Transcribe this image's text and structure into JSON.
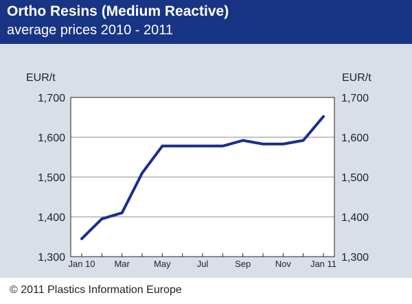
{
  "header": {
    "title": "Ortho Resins (Medium Reactive)",
    "subtitle": "average prices 2010 - 2011"
  },
  "footer": {
    "copyright": "© 2011 Plastics Information Europe"
  },
  "colors": {
    "header_bg": "#183484",
    "chart_bg": "#d9dfe9",
    "line": "#1b2d8f",
    "grid": "#888888"
  },
  "chart_data": {
    "type": "line",
    "title": "Ortho Resins (Medium Reactive)",
    "subtitle": "average prices 2010 - 2011",
    "ylabel_left": "EUR/t",
    "ylabel_right": "EUR/t",
    "ylim": [
      1300,
      1700
    ],
    "yticks": [
      1300,
      1400,
      1500,
      1600,
      1700
    ],
    "ytick_labels": [
      "1,300",
      "1,400",
      "1,500",
      "1,600",
      "1,700"
    ],
    "xtick_labels": [
      "Jan 10",
      "Mar",
      "May",
      "Jul",
      "Sep",
      "Nov",
      "Jan 11"
    ],
    "grid": "horizontal",
    "x": [
      "Jan 10",
      "Feb 10",
      "Mar 10",
      "Apr 10",
      "May 10",
      "Jun 10",
      "Jul 10",
      "Aug 10",
      "Sep 10",
      "Oct 10",
      "Nov 10",
      "Dec 10",
      "Jan 11"
    ],
    "series": [
      {
        "values": [
          1345,
          1395,
          1410,
          1510,
          1578,
          1578,
          1578,
          1578,
          1592,
          1583,
          1583,
          1592,
          1652
        ]
      }
    ]
  }
}
